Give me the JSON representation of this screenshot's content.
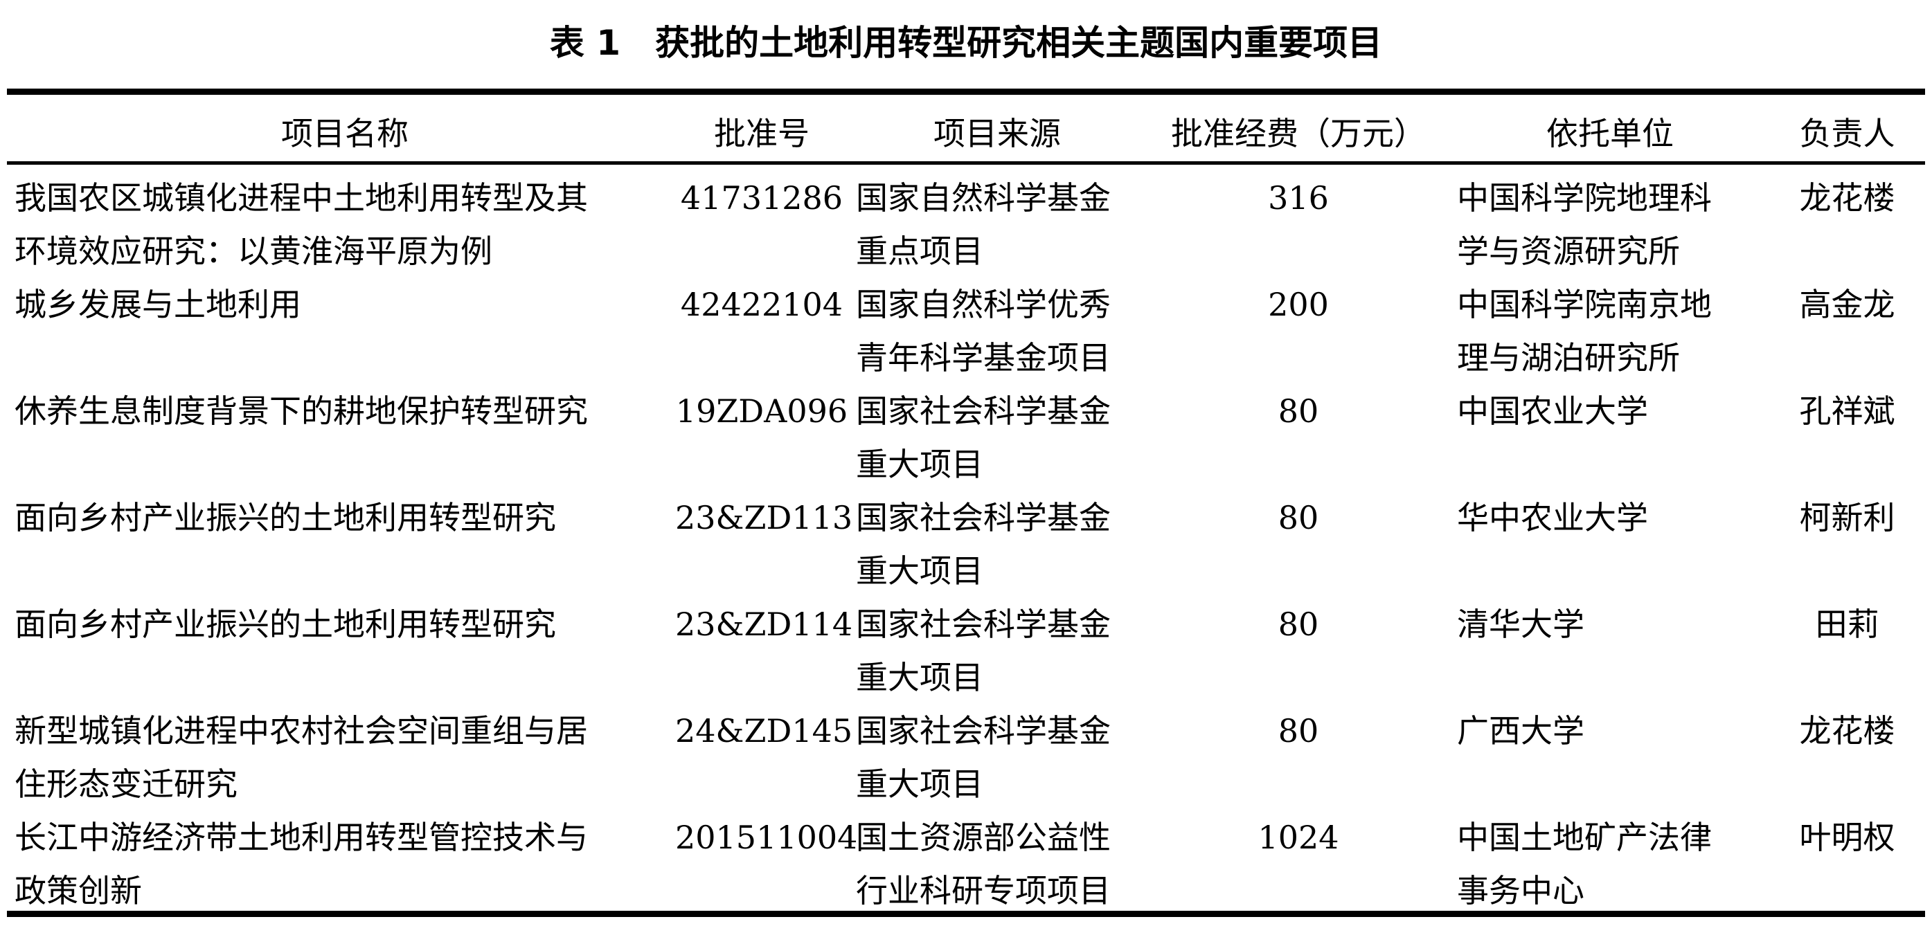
{
  "title": "表 1　获批的土地利用转型研究相关主题国内重要项目",
  "headers": [
    "项目名称",
    "批准号",
    "项目来源",
    "批准经费（万元）",
    "依托单位",
    "负责人"
  ],
  "rows": [
    {
      "name": "我国农区城镇化进程中土地利用转型及其\n环境效应研究：以黄淮海平原为例",
      "number": "41731286",
      "source": "国家自然科学基金\n重点项目",
      "funding": "316",
      "institution": "中国科学院地理科\n学与资源研究所",
      "leader": "龙花楼"
    },
    {
      "name": "城乡发展与土地利用",
      "number": "42422104",
      "source": "国家自然科学优秀\n青年科学基金项目",
      "funding": "200",
      "institution": "中国科学院南京地\n理与湖泊研究所",
      "leader": "高金龙"
    },
    {
      "name": "休养生息制度背景下的耕地保护转型研究",
      "number": "19ZDA096",
      "source": "国家社会科学基金\n重大项目",
      "funding": "80",
      "institution": "中国农业大学",
      "leader": "孔祥斌"
    },
    {
      "name": "面向乡村产业振兴的土地利用转型研究",
      "number": "23&ZD113",
      "source": "国家社会科学基金\n重大项目",
      "funding": "80",
      "institution": "华中农业大学",
      "leader": "柯新利"
    },
    {
      "name": "面向乡村产业振兴的土地利用转型研究",
      "number": "23&ZD114",
      "source": "国家社会科学基金\n重大项目",
      "funding": "80",
      "institution": "清华大学",
      "leader": "田莉"
    },
    {
      "name": "新型城镇化进程中农村社会空间重组与居\n住形态变迁研究",
      "number": "24&ZD145",
      "source": "国家社会科学基金\n重大项目",
      "funding": "80",
      "institution": "广西大学",
      "leader": "龙花楼"
    },
    {
      "name": "长江中游经济带土地利用转型管控技术与\n政策创新",
      "number": "201511004",
      "source": "国土资源部公益性\n行业科研专项项目",
      "funding": "1024",
      "institution": "中国土地矿产法律\n事务中心",
      "leader": "叶明权"
    }
  ]
}
